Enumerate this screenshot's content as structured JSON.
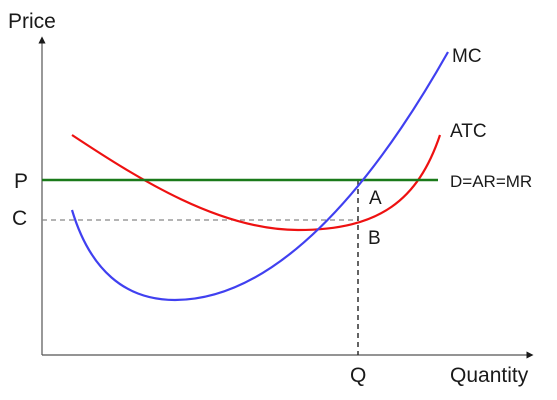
{
  "axes": {
    "y_label": "Price",
    "x_label": "Quantity"
  },
  "curves": {
    "mc": {
      "label": "MC",
      "color": "#4040f0"
    },
    "atc": {
      "label": "ATC",
      "color": "#ee1111"
    },
    "demand": {
      "label": "D=AR=MR",
      "color": "#1a7a1a"
    }
  },
  "price_levels": {
    "p": "P",
    "c": "C"
  },
  "points": {
    "a": "A",
    "b": "B"
  },
  "quantity": {
    "q": "Q"
  }
}
